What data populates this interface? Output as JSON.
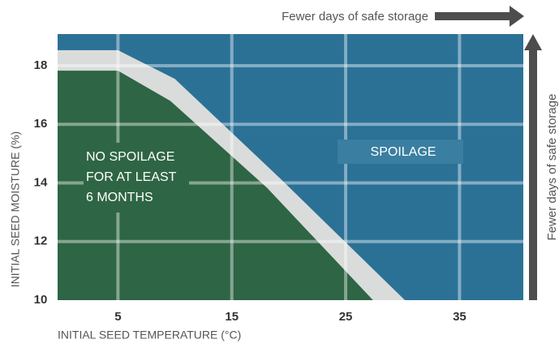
{
  "chart_data": {
    "type": "area",
    "xlabel": "INITIAL SEED TEMPERATURE (°C)",
    "ylabel": "INITIAL SEED MOISTURE (%)",
    "xlim": [
      -0.3,
      40.6
    ],
    "xticks": [
      5,
      15,
      25,
      35
    ],
    "ylim": [
      10,
      19.08
    ],
    "yticks": [
      10,
      12,
      14,
      16,
      18
    ],
    "grid": true,
    "plot_color": "#2b7196",
    "series": [
      {
        "color": "#d9dcdb",
        "x": [
          -0.3,
          5,
          10,
          19.2,
          30.2
        ],
        "values": [
          18.53,
          18.53,
          17.55,
          14.17,
          10
        ]
      },
      {
        "color": "#2e6544",
        "x": [
          -0.3,
          5,
          9.6,
          18.1,
          27.4
        ],
        "values": [
          17.83,
          17.83,
          16.8,
          13.83,
          10
        ]
      }
    ],
    "region_labels": {
      "no_spoilage": [
        "NO SPOILAGE",
        "FOR AT LEAST",
        "6 MONTHS"
      ],
      "spoilage": "SPOILAGE"
    },
    "arrow_label_x": "Fewer days of safe storage",
    "arrow_label_y": "Fewer days of safe storage"
  }
}
